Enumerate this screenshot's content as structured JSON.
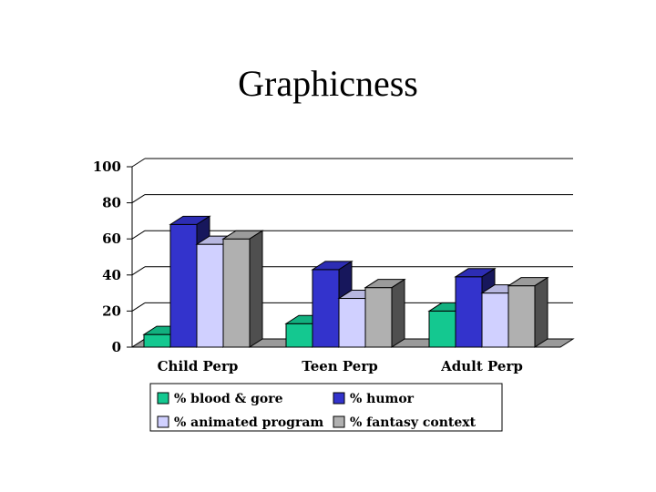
{
  "title": "Graphicness",
  "chart_data": {
    "type": "bar",
    "categories": [
      "Child Perp",
      "Teen Perp",
      "Adult Perp"
    ],
    "series": [
      {
        "name": "% blood & gore",
        "values": [
          7,
          13,
          20
        ],
        "color": "#14c890"
      },
      {
        "name": "% humor",
        "values": [
          68,
          43,
          39
        ],
        "color": "#3333cc"
      },
      {
        "name": "% animated program",
        "values": [
          57,
          27,
          30
        ],
        "color": "#d0d0ff"
      },
      {
        "name": "% fantasy context",
        "values": [
          60,
          33,
          34
        ],
        "color": "#b0b0b0"
      }
    ],
    "ylim": [
      0,
      100
    ],
    "yticks": [
      0,
      20,
      40,
      60,
      80,
      100
    ],
    "grid": true,
    "legend_position": "bottom"
  }
}
